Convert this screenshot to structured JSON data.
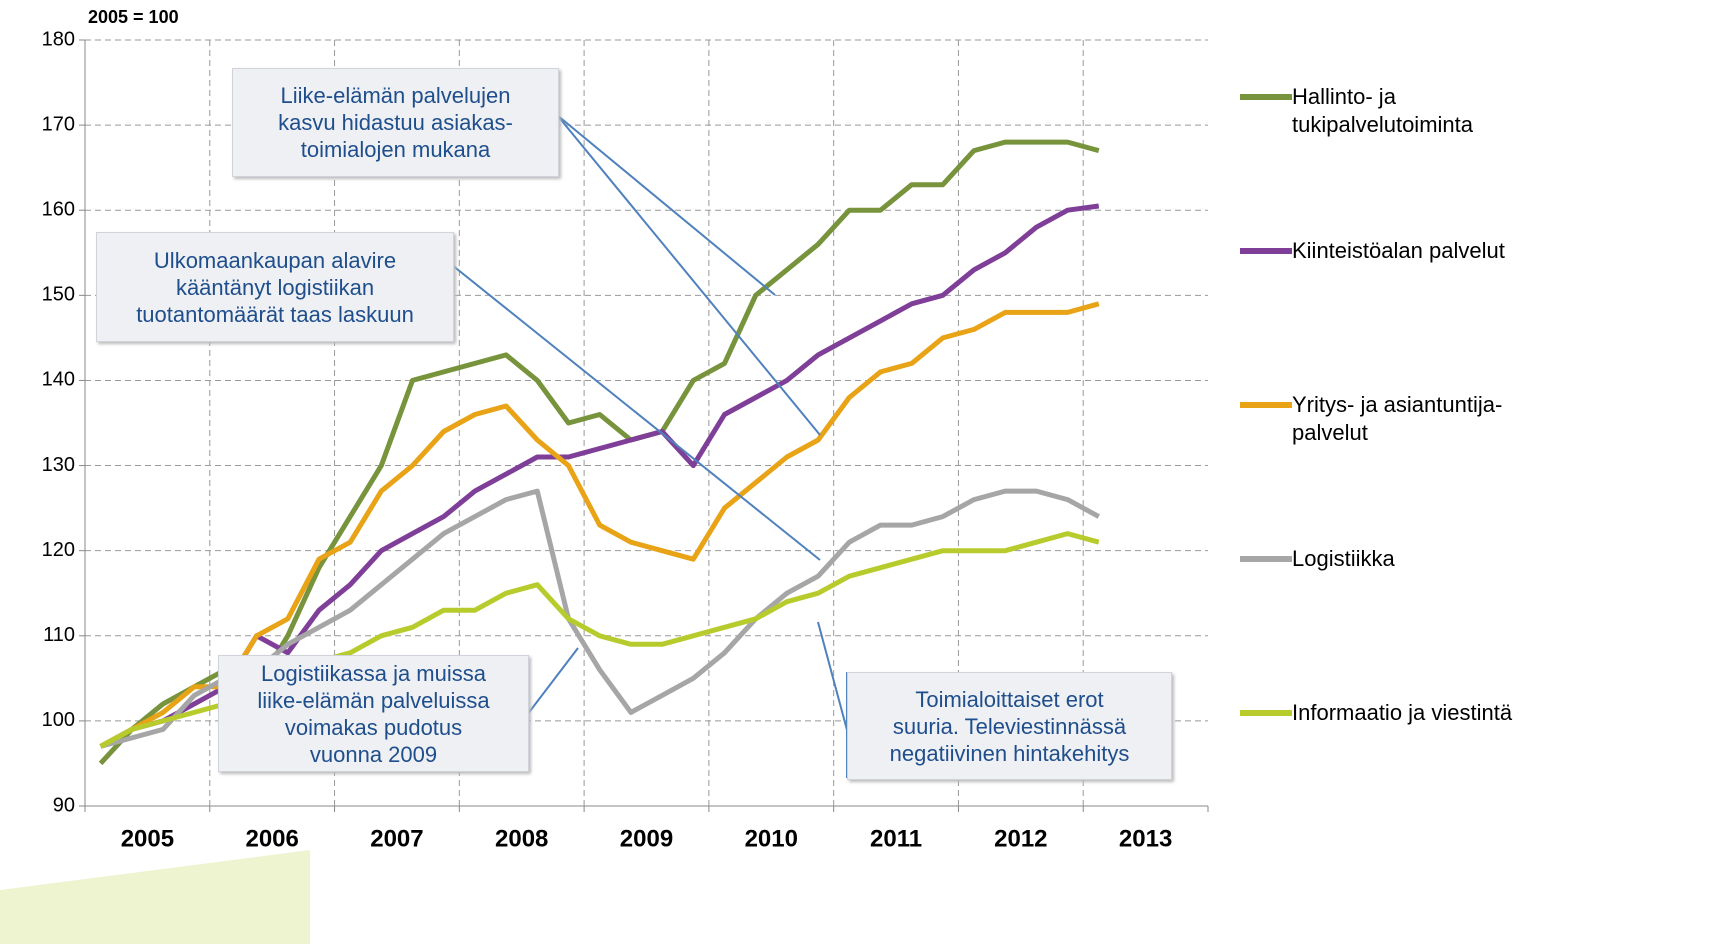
{
  "chart_data": {
    "type": "line",
    "y_label": "2005 = 100",
    "categories": [
      "2005",
      null,
      null,
      null,
      "2006",
      null,
      null,
      null,
      "2007",
      null,
      null,
      null,
      "2008",
      null,
      null,
      null,
      "2009",
      null,
      null,
      null,
      "2010",
      null,
      null,
      null,
      "2011",
      null,
      null,
      null,
      "2012",
      null,
      null,
      null,
      "2013",
      null,
      null,
      null
    ],
    "series": [
      {
        "name": "Hallinto- ja tukipalvelutoiminta",
        "color": "#77933c",
        "values": [
          95,
          99,
          102,
          104,
          106,
          104,
          110,
          118,
          124,
          130,
          140,
          141,
          142,
          143,
          140,
          135,
          136,
          133,
          134,
          140,
          142,
          150,
          153,
          156,
          160,
          160,
          163,
          163,
          167,
          168,
          168,
          168,
          167,
          null,
          null,
          null
        ]
      },
      {
        "name": "Kiinteistöalan palvelut",
        "color": "#7f3f98",
        "values": [
          97,
          99,
          100,
          102,
          104,
          110,
          108,
          113,
          116,
          120,
          122,
          124,
          127,
          129,
          131,
          131,
          132,
          133,
          134,
          130,
          136,
          138,
          140,
          143,
          145,
          147,
          149,
          150,
          153,
          155,
          158,
          160,
          160.5,
          null,
          null,
          null
        ]
      },
      {
        "name": "Yritys- ja asiantuntija-palvelut",
        "color": "#e8a317",
        "values": [
          97,
          99,
          101,
          104,
          104,
          110,
          112,
          119,
          121,
          127,
          130,
          134,
          136,
          137,
          133,
          130,
          123,
          121,
          120,
          119,
          125,
          128,
          131,
          133,
          138,
          141,
          142,
          145,
          146,
          148,
          148,
          148,
          149,
          null,
          null,
          null
        ]
      },
      {
        "name": "Logistiikka",
        "color": "#a6a6a6",
        "values": [
          97,
          98,
          99,
          103,
          105,
          106,
          109,
          111,
          113,
          116,
          119,
          122,
          124,
          126,
          127,
          112,
          106,
          101,
          103,
          105,
          108,
          112,
          115,
          117,
          121,
          123,
          123,
          124,
          126,
          127,
          127,
          126,
          124,
          null,
          null,
          null
        ]
      },
      {
        "name": "Informaatio ja viestintä",
        "color": "#b7cc2c",
        "values": [
          97,
          99,
          100,
          101,
          102,
          104,
          106,
          107,
          108,
          110,
          111,
          113,
          113,
          115,
          116,
          112,
          110,
          109,
          109,
          110,
          111,
          112,
          114,
          115,
          117,
          118,
          119,
          120,
          120,
          120,
          121,
          122,
          121,
          null,
          null,
          null
        ]
      }
    ],
    "ylim": [
      90,
      180
    ],
    "yticks": [
      90,
      100,
      110,
      120,
      130,
      140,
      150,
      160,
      170,
      180
    ],
    "grid": true,
    "annotations": [
      {
        "lines": [
          "Liike-elämän palvelujen",
          "kasvu hidastuu asiakas-",
          "toimialojen mukana"
        ]
      },
      {
        "lines": [
          "Ulkomaankaupan alavire",
          "kääntänyt logistiikan",
          "tuotantomäärät taas laskuun"
        ]
      },
      {
        "lines": [
          "Logistiikassa ja muissa",
          "liike-elämän palveluissa",
          "voimakas pudotus",
          "vuonna 2009"
        ]
      },
      {
        "lines": [
          "Toimialoittaiset erot",
          "suuria. Televiestinnässä",
          "negatiivinen hintakehitys"
        ]
      }
    ]
  }
}
